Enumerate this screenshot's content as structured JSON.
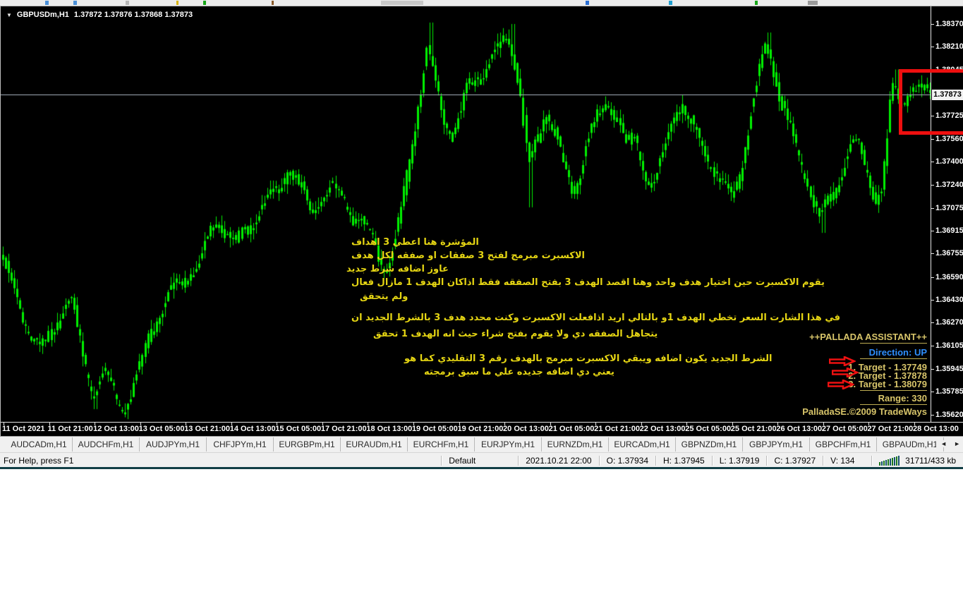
{
  "chart": {
    "symbol": {
      "expand_icon": "▼",
      "name": "GBPUSDm,H1",
      "quotes": "1.37872 1.37876 1.37868 1.37873"
    },
    "price_axis": {
      "current_price": "1.37873",
      "ticks": [
        "1.38370",
        "1.38210",
        "1.38045",
        "1.37725",
        "1.37560",
        "1.37400",
        "1.37240",
        "1.37075",
        "1.36915",
        "1.36755",
        "1.36590",
        "1.36430",
        "1.36270",
        "1.36105",
        "1.35945",
        "1.35785",
        "1.35620"
      ]
    },
    "time_axis": {
      "labels": [
        "11 Oct 2021",
        "11 Oct 21:00",
        "12 Oct 13:00",
        "13 Oct 05:00",
        "13 Oct 21:00",
        "14 Oct 13:00",
        "15 Oct 05:00",
        "17 Oct 21:00",
        "18 Oct 13:00",
        "19 Oct 05:00",
        "19 Oct 21:00",
        "20 Oct 13:00",
        "21 Oct 05:00",
        "21 Oct 21:00",
        "22 Oct 13:00",
        "25 Oct 05:00",
        "25 Oct 21:00",
        "26 Oct 13:00",
        "27 Oct 05:00",
        "27 Oct 21:00",
        "28 Oct 13:00"
      ]
    },
    "annotations": {
      "lines": [
        "المؤشرة هنا اعطي 3 اهداف",
        "الاكسبرت مبرمج لفتح 3 صفقات او صفقه لكل هدف",
        "عاوز اضافه شرط جديد",
        "يقوم الاكسبرت حين اختيار هدف واحد وهنا اقصد الهدف 3 بفتح الصفقه فقط اذاكان الهدف 1 مازال فعال",
        "ولم يتحقق",
        "في هذا الشارت السعر تخطي الهدف 1و بالتالي اريد اذافعلت الاكسبرت وكنت محدد هدف 3 بالشرط الجديد ان",
        "يتجاهل الصفقه دي ولا يقوم بفتح شراء حيث انه الهدف 1 تحقق",
        "الشرط الجديد يكون اضافه ويبقي الاكسبرت مبرمج بالهدف رقم 3 التقليدي كما هو",
        "يعني دي اضافه جديده علي ما سبق برمجته"
      ]
    },
    "pallada": {
      "title": "++PALLADA ASSISTANT++",
      "direction": "Direction: UP",
      "targets": [
        "1. Target - 1.37749",
        "2. Target - 1.37878",
        "3. Target - 1.38079"
      ],
      "range": "Range: 330",
      "copyright": "PalladaSE.©2009 TradeWays",
      "accent_text_color": "#d8c56a",
      "direction_color": "#2f8fff",
      "arrow_color": "#ee1111"
    },
    "colors": {
      "background": "#000000",
      "candle": "#00f000",
      "current_price_line": "#9fa8b4",
      "red_box": "#ee0f0f",
      "annotation_yellow": "#e5d513"
    }
  },
  "chart_data": {
    "type": "candlestick",
    "symbol": "GBPUSDm",
    "timeframe": "H1",
    "title": "GBPUSDm,H1 1.37872 1.37876 1.37868 1.37873",
    "ylim": [
      1.3562,
      1.3837
    ],
    "y_ticks": [
      1.3837,
      1.3821,
      1.38045,
      1.37885,
      1.37725,
      1.3756,
      1.374,
      1.3724,
      1.37075,
      1.36915,
      1.36755,
      1.3659,
      1.3643,
      1.3627,
      1.36105,
      1.35945,
      1.35785,
      1.3562
    ],
    "current_price": 1.37873,
    "x_labels": [
      "11 Oct 2021",
      "11 Oct 21:00",
      "12 Oct 13:00",
      "13 Oct 05:00",
      "13 Oct 21:00",
      "14 Oct 13:00",
      "15 Oct 05:00",
      "17 Oct 21:00",
      "18 Oct 13:00",
      "19 Oct 05:00",
      "19 Oct 21:00",
      "20 Oct 13:00",
      "21 Oct 05:00",
      "21 Oct 21:00",
      "22 Oct 13:00",
      "25 Oct 05:00",
      "25 Oct 21:00",
      "26 Oct 13:00",
      "27 Oct 05:00",
      "27 Oct 21:00",
      "28 Oct 13:00"
    ],
    "close_path_waypoints": [
      [
        0,
        1.3672
      ],
      [
        0.009,
        1.3655
      ],
      [
        0.021,
        1.3638
      ],
      [
        0.034,
        1.362
      ],
      [
        0.046,
        1.3612
      ],
      [
        0.055,
        1.3622
      ],
      [
        0.064,
        1.3634
      ],
      [
        0.076,
        1.364
      ],
      [
        0.085,
        1.361
      ],
      [
        0.093,
        1.359
      ],
      [
        0.1,
        1.3575
      ],
      [
        0.11,
        1.3592
      ],
      [
        0.12,
        1.3585
      ],
      [
        0.13,
        1.357
      ],
      [
        0.141,
        1.3578
      ],
      [
        0.152,
        1.3596
      ],
      [
        0.161,
        1.3618
      ],
      [
        0.171,
        1.363
      ],
      [
        0.182,
        1.3645
      ],
      [
        0.193,
        1.3656
      ],
      [
        0.203,
        1.3666
      ],
      [
        0.215,
        1.3672
      ],
      [
        0.225,
        1.369
      ],
      [
        0.235,
        1.37
      ],
      [
        0.244,
        1.3686
      ],
      [
        0.254,
        1.3678
      ],
      [
        0.265,
        1.3692
      ],
      [
        0.277,
        1.3706
      ],
      [
        0.288,
        1.3716
      ],
      [
        0.3,
        1.3726
      ],
      [
        0.311,
        1.3739
      ],
      [
        0.322,
        1.372
      ],
      [
        0.334,
        1.3701
      ],
      [
        0.345,
        1.3711
      ],
      [
        0.357,
        1.3723
      ],
      [
        0.368,
        1.3717
      ],
      [
        0.379,
        1.3706
      ],
      [
        0.391,
        1.3696
      ],
      [
        0.402,
        1.3681
      ],
      [
        0.411,
        1.3663
      ],
      [
        0.421,
        1.3671
      ],
      [
        0.431,
        1.3701
      ],
      [
        0.44,
        1.3741
      ],
      [
        0.449,
        1.3781
      ],
      [
        0.459,
        1.3821
      ],
      [
        0.467,
        1.3801
      ],
      [
        0.476,
        1.3771
      ],
      [
        0.486,
        1.3759
      ],
      [
        0.495,
        1.3771
      ],
      [
        0.504,
        1.3791
      ],
      [
        0.516,
        1.3801
      ],
      [
        0.527,
        1.3811
      ],
      [
        0.539,
        1.3826
      ],
      [
        0.548,
        1.3833
      ],
      [
        0.558,
        1.3796
      ],
      [
        0.568,
        1.3736
      ],
      [
        0.577,
        1.3751
      ],
      [
        0.586,
        1.3773
      ],
      [
        0.596,
        1.3759
      ],
      [
        0.605,
        1.3736
      ],
      [
        0.615,
        1.3721
      ],
      [
        0.624,
        1.3739
      ],
      [
        0.633,
        1.3761
      ],
      [
        0.643,
        1.3773
      ],
      [
        0.654,
        1.3781
      ],
      [
        0.664,
        1.3766
      ],
      [
        0.674,
        1.3746
      ],
      [
        0.683,
        1.3756
      ],
      [
        0.692,
        1.3736
      ],
      [
        0.702,
        1.3723
      ],
      [
        0.712,
        1.3746
      ],
      [
        0.721,
        1.3771
      ],
      [
        0.73,
        1.3781
      ],
      [
        0.74,
        1.3766
      ],
      [
        0.75,
        1.3756
      ],
      [
        0.759,
        1.3743
      ],
      [
        0.768,
        1.3731
      ],
      [
        0.778,
        1.3723
      ],
      [
        0.787,
        1.3719
      ],
      [
        0.797,
        1.3741
      ],
      [
        0.806,
        1.3771
      ],
      [
        0.816,
        1.3801
      ],
      [
        0.823,
        1.3823
      ],
      [
        0.831,
        1.3806
      ],
      [
        0.838,
        1.3781
      ],
      [
        0.846,
        1.3766
      ],
      [
        0.856,
        1.3751
      ],
      [
        0.865,
        1.3736
      ],
      [
        0.874,
        1.3716
      ],
      [
        0.882,
        1.3701
      ],
      [
        0.889,
        1.3713
      ],
      [
        0.899,
        1.3723
      ],
      [
        0.909,
        1.3739
      ],
      [
        0.918,
        1.3751
      ],
      [
        0.927,
        1.3743
      ],
      [
        0.935,
        1.3726
      ],
      [
        0.942,
        1.3713
      ],
      [
        0.948,
        1.3721
      ],
      [
        0.953,
        1.3749
      ],
      [
        0.957,
        1.3781
      ],
      [
        0.961,
        1.3801
      ],
      [
        0.965,
        1.3789
      ],
      [
        0.971,
        1.3787
      ],
      [
        0.979,
        1.3792
      ],
      [
        0.986,
        1.3786
      ],
      [
        0.994,
        1.3788
      ],
      [
        1,
        1.3787
      ]
    ],
    "spike_highs": [
      [
        0.459,
        1.3838
      ],
      [
        0.548,
        1.3837
      ],
      [
        0.823,
        1.3831
      ],
      [
        0.961,
        1.3805
      ]
    ],
    "spike_lows": [
      [
        0.1,
        1.3566
      ],
      [
        0.13,
        1.3563
      ],
      [
        0.568,
        1.3708
      ],
      [
        0.882,
        1.369
      ]
    ]
  },
  "tabs": {
    "items": [
      "AUDCADm,H1",
      "AUDCHFm,H1",
      "AUDJPYm,H1",
      "CHFJPYm,H1",
      "EURGBPm,H1",
      "EURAUDm,H1",
      "EURCHFm,H1",
      "EURJPYm,H1",
      "EURNZDm,H1",
      "EURCADm,H1",
      "GBPNZDm,H1",
      "GBPJPYm,H1",
      "GBPCHFm,H1",
      "GBPAUDm,H1"
    ],
    "scroll_left": "◄",
    "scroll_right": "►"
  },
  "status_bar": {
    "help": "For Help, press F1",
    "profile": "Default",
    "datetime": "2021.10.21 22:00",
    "open": "O: 1.37934",
    "high": "H: 1.37945",
    "low": "L: 1.37919",
    "close": "C: 1.37927",
    "volume": "V: 134",
    "traffic": "31711/433 kb"
  }
}
